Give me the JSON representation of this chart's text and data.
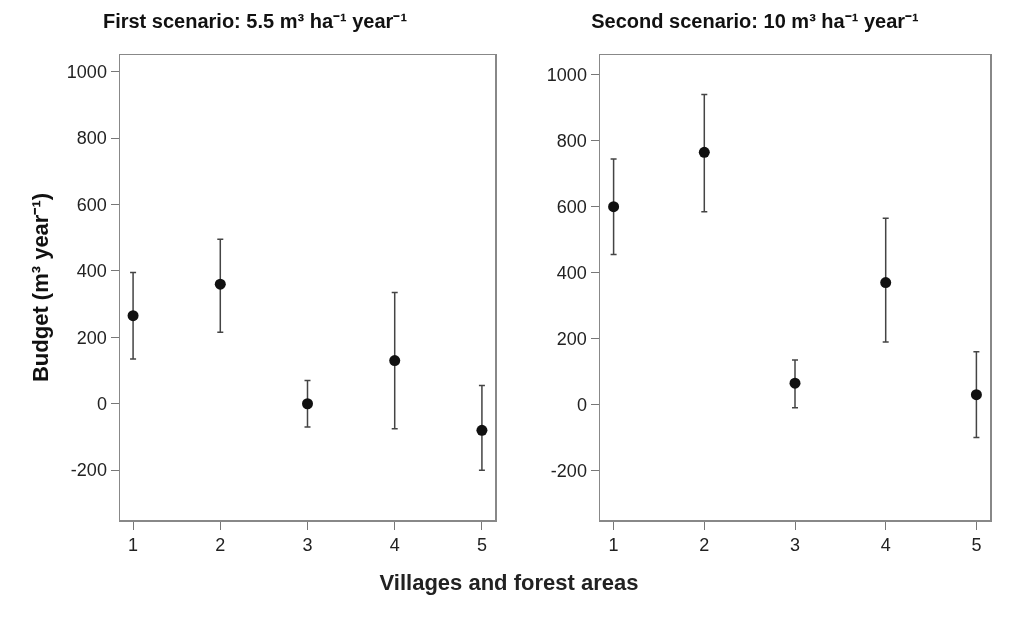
{
  "chart_data": [
    {
      "type": "scatter",
      "title": "First scenario: 5.5 m³ ha⁻¹ year⁻¹",
      "xlabel": "Villages and forest areas",
      "ylabel": "Budget (m³ year⁻¹)",
      "categories": [
        "1",
        "2",
        "3",
        "4",
        "5"
      ],
      "series": [
        {
          "color": "#111111",
          "values": [
            265,
            360,
            0,
            130,
            -80
          ],
          "errors": [
            [
              135,
              395
            ],
            [
              215,
              495
            ],
            [
              -70,
              70
            ],
            [
              -75,
              335
            ],
            [
              -200,
              55
            ]
          ]
        }
      ],
      "ylim": [
        -350,
        1050
      ],
      "yticks": [
        -200,
        0,
        200,
        400,
        600,
        800,
        1000
      ],
      "grid": false,
      "marker": "circle"
    },
    {
      "type": "scatter",
      "title": "Second scenario: 10 m³ ha⁻¹ year⁻¹",
      "categories": [
        "1",
        "2",
        "3",
        "4",
        "5"
      ],
      "series": [
        {
          "color": "#111111",
          "values": [
            600,
            765,
            65,
            370,
            30
          ],
          "errors": [
            [
              455,
              745
            ],
            [
              585,
              940
            ],
            [
              -10,
              135
            ],
            [
              190,
              565
            ],
            [
              -100,
              160
            ]
          ]
        }
      ],
      "ylim": [
        -350,
        1060
      ],
      "yticks": [
        -200,
        0,
        200,
        400,
        600,
        800,
        1000
      ],
      "grid": false,
      "marker": "circle"
    }
  ]
}
